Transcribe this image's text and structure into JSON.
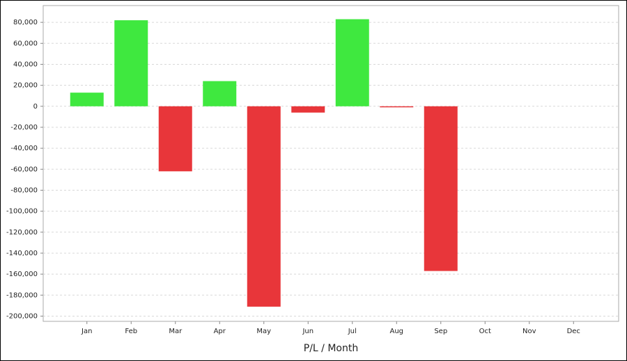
{
  "chart_data": {
    "type": "bar",
    "x_label": "P/L / Month",
    "categories": [
      "Jan",
      "Feb",
      "Mar",
      "Apr",
      "May",
      "Jun",
      "Jul",
      "Aug",
      "Sep",
      "Oct",
      "Nov",
      "Dec"
    ],
    "values": [
      13000,
      82000,
      -62000,
      24000,
      -191000,
      -6000,
      83000,
      -1000,
      -157000,
      null,
      null,
      null
    ],
    "positive_color": "#3fe83f",
    "negative_color": "#e8363a",
    "ylim": [
      -205000,
      96000
    ],
    "yticks": [
      {
        "value": 80000,
        "label": "80,000"
      },
      {
        "value": 60000,
        "label": "60,000"
      },
      {
        "value": 40000,
        "label": "40,000"
      },
      {
        "value": 20000,
        "label": "20,000"
      },
      0,
      {
        "value": -20000,
        "label": "-20,000"
      },
      {
        "value": -40000,
        "label": "-40,000"
      },
      {
        "value": -60000,
        "label": "-60,000"
      },
      {
        "value": -80000,
        "label": "-80,000"
      },
      {
        "value": -100000,
        "label": "-100,000"
      },
      {
        "value": -120000,
        "label": "-120,000"
      },
      {
        "value": -140000,
        "label": "-140,000"
      },
      {
        "value": -160000,
        "label": "-160,000"
      },
      {
        "value": -180000,
        "label": "-180,000"
      },
      {
        "value": -200000,
        "label": "-200,000"
      }
    ],
    "grid": true
  }
}
